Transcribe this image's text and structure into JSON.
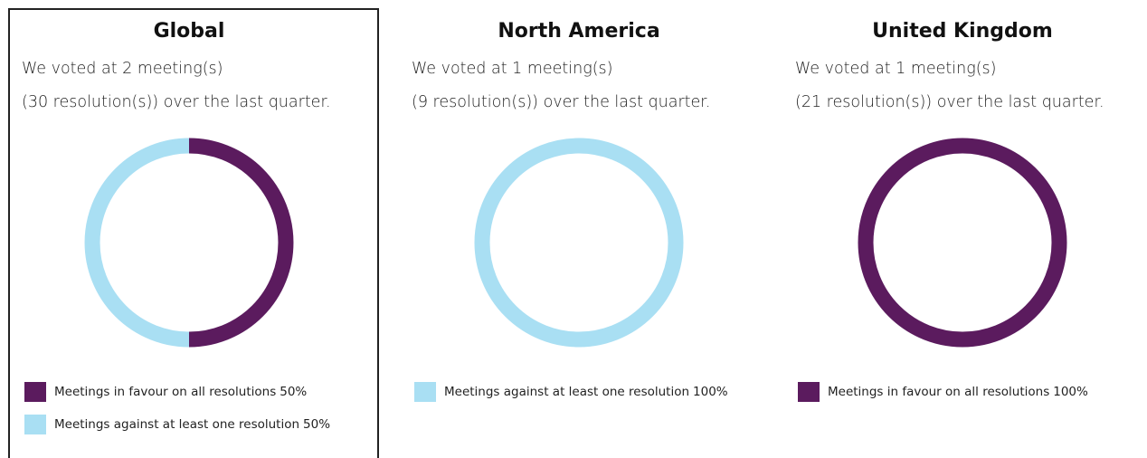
{
  "chart_data": [
    {
      "type": "donut",
      "title": "Global",
      "subtitle": [
        "We voted at 2 meeting(s)",
        "(30 resolution(s)) over the last quarter."
      ],
      "categories": [
        "Meetings in favour on all resolutions",
        "Meetings against at least one resolution"
      ],
      "values": [
        50,
        50
      ],
      "value_labels": [
        "50%",
        "50%"
      ],
      "colors": [
        "#5b1b5e",
        "#a9dff3"
      ],
      "selected": true
    },
    {
      "type": "donut",
      "title": "North America",
      "subtitle": [
        "We voted at 1 meeting(s)",
        "(9 resolution(s)) over the last quarter."
      ],
      "categories": [
        "Meetings against at least one resolution"
      ],
      "values": [
        100
      ],
      "value_labels": [
        "100%"
      ],
      "colors": [
        "#a9dff3"
      ],
      "selected": false
    },
    {
      "type": "donut",
      "title": "United Kingdom",
      "subtitle": [
        "We voted at 1 meeting(s)",
        "(21 resolution(s)) over the last quarter."
      ],
      "categories": [
        "Meetings in favour on all resolutions"
      ],
      "values": [
        100
      ],
      "value_labels": [
        "100%"
      ],
      "colors": [
        "#5b1b5e"
      ],
      "selected": false
    }
  ]
}
